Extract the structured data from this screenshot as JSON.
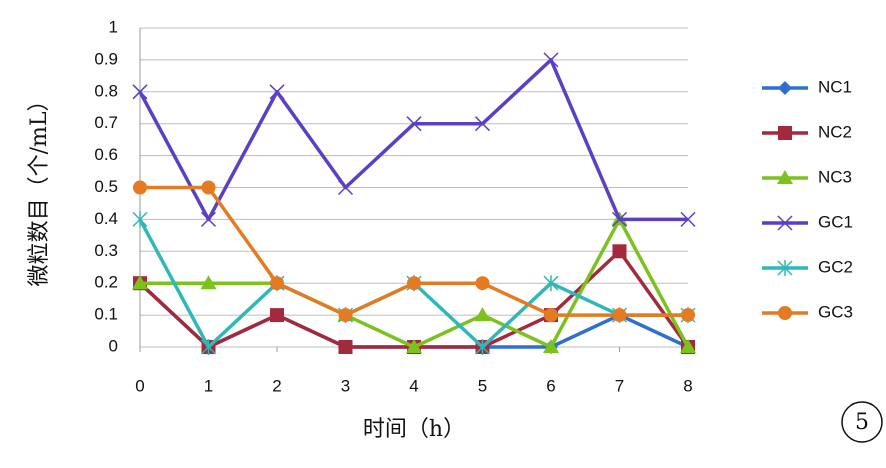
{
  "chart_data": {
    "type": "line",
    "y_label": "微粒数目（个/mL）",
    "x_label": "时间（h）",
    "annotation": "5",
    "x": [
      0,
      1,
      2,
      3,
      4,
      5,
      6,
      7,
      8
    ],
    "xlim": [
      0,
      8
    ],
    "xticks": [
      0,
      1,
      2,
      3,
      4,
      5,
      6,
      7,
      8
    ],
    "ylim": [
      0,
      1
    ],
    "yticks": [
      0,
      0.1,
      0.2,
      0.3,
      0.4,
      0.5,
      0.6,
      0.7,
      0.8,
      0.9,
      1
    ],
    "grid": true,
    "legend": "right",
    "series": [
      {
        "name": "NC1",
        "color": "#2f6fd0",
        "marker": "diamond",
        "values": [
          0.2,
          0,
          0.1,
          0,
          0,
          0,
          0,
          0.1,
          0
        ]
      },
      {
        "name": "NC2",
        "color": "#a32a3c",
        "marker": "square",
        "values": [
          0.2,
          0,
          0.1,
          0,
          0,
          0,
          0.1,
          0.3,
          0
        ]
      },
      {
        "name": "NC3",
        "color": "#7cc21e",
        "marker": "triangle",
        "values": [
          0.2,
          0.2,
          0.2,
          0.1,
          0,
          0.1,
          0,
          0.4,
          0
        ]
      },
      {
        "name": "GC1",
        "color": "#5b3fc4",
        "marker": "x",
        "values": [
          0.8,
          0.4,
          0.8,
          0.5,
          0.7,
          0.7,
          0.9,
          0.4,
          0.4
        ]
      },
      {
        "name": "GC2",
        "color": "#2fb8b8",
        "marker": "star",
        "values": [
          0.4,
          0,
          0.2,
          0.1,
          0.2,
          0,
          0.2,
          0.1,
          0.1
        ]
      },
      {
        "name": "GC3",
        "color": "#e47a22",
        "marker": "circle",
        "values": [
          0.5,
          0.5,
          0.2,
          0.1,
          0.2,
          0.2,
          0.1,
          0.1,
          0.1
        ]
      }
    ]
  }
}
